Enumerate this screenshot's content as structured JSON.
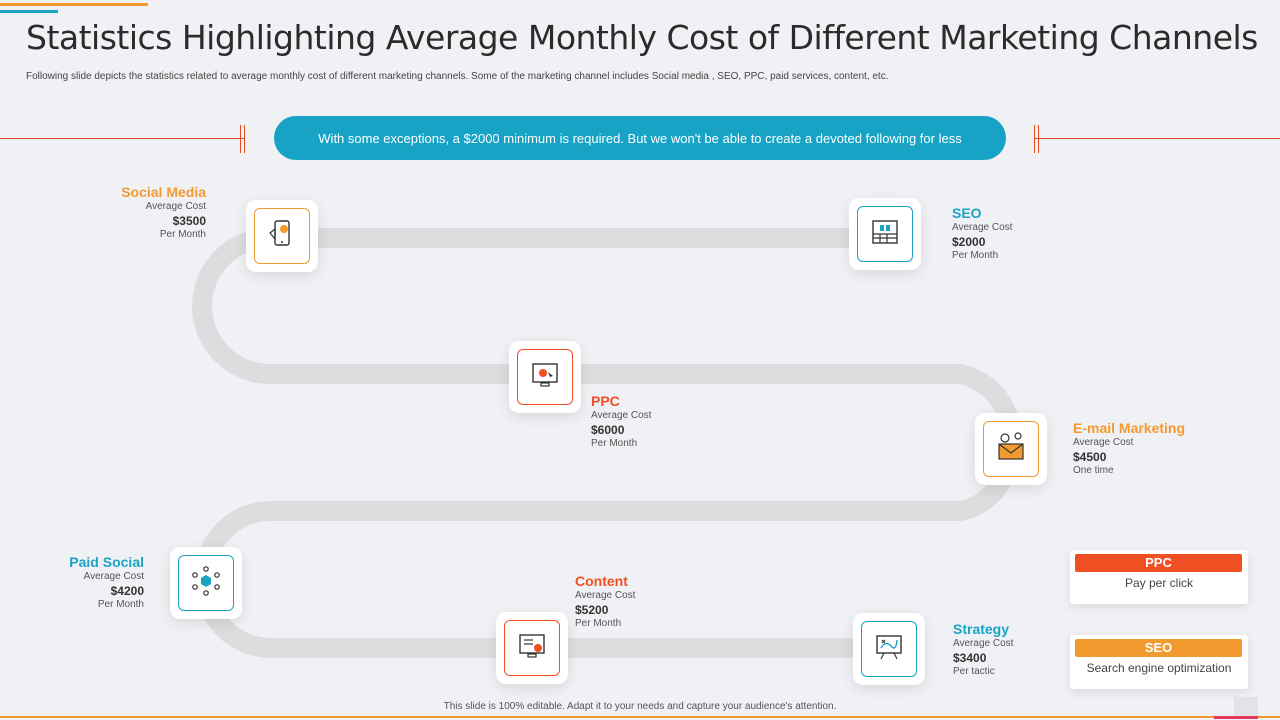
{
  "colors": {
    "orange": "#f29a2e",
    "red": "#f04e23",
    "teal": "#1aa3c3",
    "banner": "#16a3c5"
  },
  "title": "Statistics Highlighting Average Monthly Cost of Different Marketing Channels",
  "subtitle": "Following slide depicts the statistics related to average monthly cost of different marketing channels. Some of the marketing channel includes Social media , SEO, PPC,  paid services, content, etc.",
  "banner": "With some exceptions, a $2000 minimum is required.  But we won't be able to create a devoted following  for less",
  "channels": [
    {
      "name": "Social Media",
      "avg_label": "Average Cost",
      "cost": "$3500",
      "period": "Per Month",
      "icon": "mobile-social-icon"
    },
    {
      "name": "SEO",
      "avg_label": "Average Cost",
      "cost": "$2000",
      "period": "Per Month",
      "icon": "seo-chart-icon"
    },
    {
      "name": "PPC",
      "avg_label": "Average Cost",
      "cost": "$6000",
      "period": "Per Month",
      "icon": "monitor-click-icon"
    },
    {
      "name": "E-mail Marketing",
      "avg_label": "Average Cost",
      "cost": "$4500",
      "period": "One time",
      "icon": "envelope-dollar-icon"
    },
    {
      "name": "Paid Social",
      "avg_label": "Average Cost",
      "cost": "$4200",
      "period": "Per Month",
      "icon": "network-hex-icon"
    },
    {
      "name": "Content",
      "avg_label": "Average Cost",
      "cost": "$5200",
      "period": "Per Month",
      "icon": "content-screen-icon"
    },
    {
      "name": "Strategy",
      "avg_label": "Average Cost",
      "cost": "$3400",
      "period": "Per tactic",
      "icon": "strategy-board-icon"
    }
  ],
  "legend": [
    {
      "tag": "PPC",
      "desc": "Pay per click"
    },
    {
      "tag": "SEO",
      "desc": "Search engine optimization"
    }
  ],
  "footer": "This slide is 100% editable.  Adapt it to your needs and capture your audience's attention."
}
